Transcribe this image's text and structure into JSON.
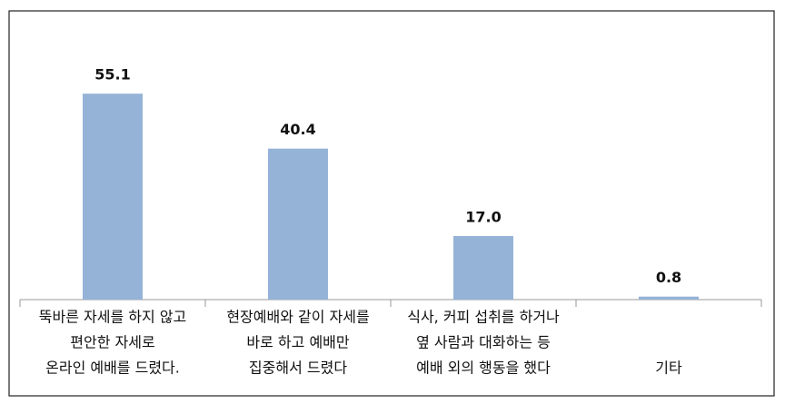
{
  "chart_data": {
    "type": "bar",
    "categories": [
      [
        "뚝바른 자세를 하지 않고",
        "편안한 자세로",
        "온라인 예배를 드렸다."
      ],
      [
        "현장예배와 같이 자세를",
        "바로 하고 예배만",
        "집중해서 드렸다"
      ],
      [
        "식사, 커피 섭취를 하거나",
        "옆 사람과 대화하는 등",
        "예배 외의 행동을 했다"
      ],
      [
        "기타"
      ]
    ],
    "values": [
      55.1,
      40.4,
      17.0,
      0.8
    ],
    "value_labels": [
      "55.1",
      "40.4",
      "17.0",
      "0.8"
    ],
    "color": "#95b3d7",
    "ylim": [
      0,
      60
    ],
    "grid": false
  }
}
